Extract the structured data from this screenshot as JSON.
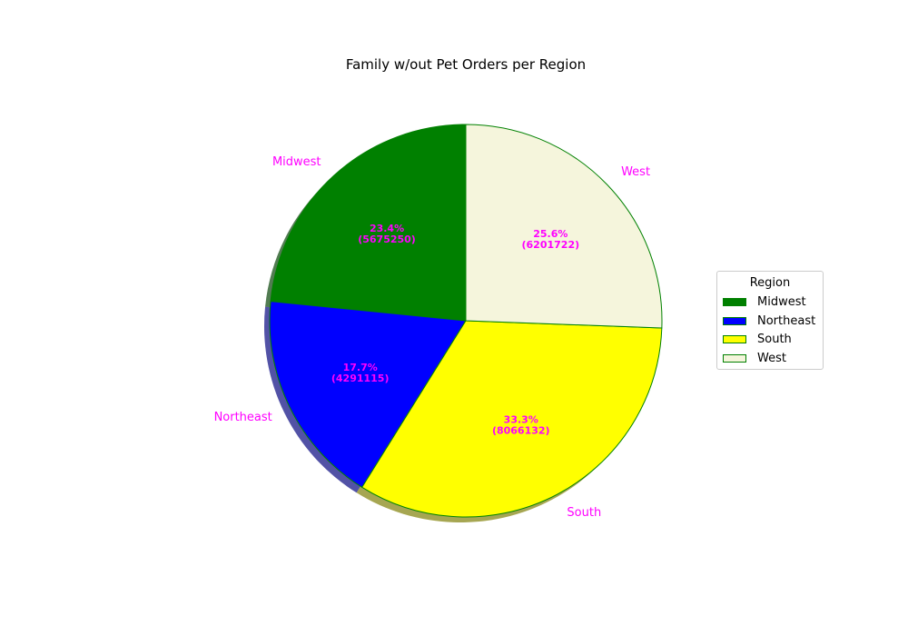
{
  "chart_data": {
    "type": "pie",
    "title": "Family w/out Pet Orders per Region",
    "categories": [
      "Midwest",
      "Northeast",
      "South",
      "West"
    ],
    "values": [
      5675250,
      4291115,
      8066132,
      6201722
    ],
    "percent_labels": [
      "23.4%",
      "17.7%",
      "33.3%",
      "25.6%"
    ],
    "value_labels": [
      "(5675250)",
      "(4291115)",
      "(8066132)",
      "(6201722)"
    ],
    "colors": [
      "#008000",
      "#0000ff",
      "#ffff00",
      "#f5f5dc"
    ],
    "edge_color": "#008000",
    "label_color": "#ff00ff",
    "shadow": true,
    "start_angle_deg": 90,
    "direction": "counterclockwise",
    "legend": {
      "title": "Region",
      "placement": "center-right",
      "entries": [
        "Midwest",
        "Northeast",
        "South",
        "West"
      ]
    }
  }
}
